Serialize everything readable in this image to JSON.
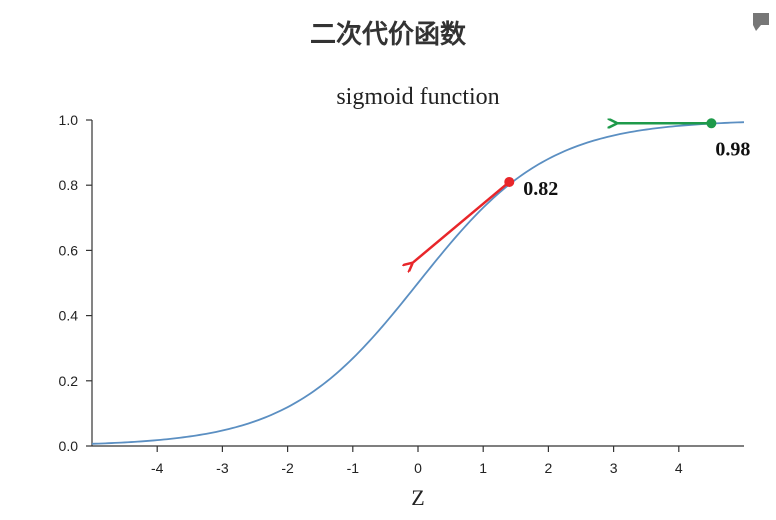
{
  "header": {
    "title": "二次代价函数"
  },
  "icons": {
    "corner": "slide-corner-icon"
  },
  "colors": {
    "curve": "#5b8fc2",
    "red_arrow": "#e8262a",
    "green_arrow": "#1e9a4a",
    "axis": "#333333"
  },
  "chart_data": {
    "type": "line",
    "title": "sigmoid function",
    "xlabel": "Z",
    "ylabel": "",
    "xlim": [
      -5,
      5
    ],
    "ylim": [
      0,
      1
    ],
    "xticks": [
      "-4",
      "-3",
      "-2",
      "-1",
      "0",
      "1",
      "2",
      "3",
      "4"
    ],
    "yticks": [
      "0.0",
      "0.2",
      "0.4",
      "0.6",
      "0.8",
      "1.0"
    ],
    "grid": false,
    "series": [
      {
        "function": "sigmoid",
        "x_range": [
          -5,
          5
        ]
      }
    ],
    "annotations": [
      {
        "label": "0.82",
        "x": 1.4,
        "y": 0.81,
        "color": "red",
        "arrow": "tangent toward lower-left"
      },
      {
        "label": "0.98",
        "x": 4.5,
        "y": 0.99,
        "color": "green",
        "arrow": "horizontal toward left"
      }
    ]
  }
}
